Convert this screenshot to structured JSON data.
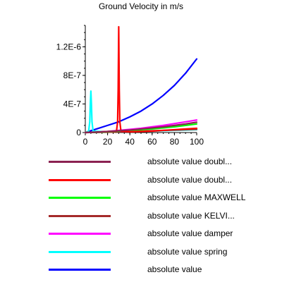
{
  "chart_data": {
    "type": "line",
    "title": "Ground Velocity in m/s",
    "xlabel": "",
    "ylabel": "",
    "xlim": [
      0,
      100
    ],
    "ylim": [
      0,
      1.5e-06
    ],
    "xticks": [
      0,
      20,
      40,
      60,
      80,
      100
    ],
    "yticks": [
      0,
      4e-07,
      8e-07,
      1.2e-06
    ],
    "xtick_labels": [
      "0",
      "20",
      "40",
      "60",
      "80",
      "100"
    ],
    "ytick_labels": [
      "0",
      "4E-7",
      "8E-7",
      "1.2E-6"
    ],
    "legend_placement": "bottom",
    "grid": false,
    "series": [
      {
        "name": "absolute value doubl...",
        "color": "#8b2252",
        "x": [
          0,
          10,
          20,
          30,
          40,
          50,
          60,
          70,
          80,
          90,
          100
        ],
        "y": [
          0,
          5e-09,
          1.5e-08,
          2.5e-08,
          3.5e-08,
          5e-08,
          6.5e-08,
          8e-08,
          1e-07,
          1.2e-07,
          1.45e-07
        ]
      },
      {
        "name": "absolute value doubl...",
        "color": "#ff0000",
        "x": [
          0,
          28,
          29,
          29.5,
          30,
          30.5,
          31,
          32,
          40,
          60,
          80,
          100
        ],
        "y": [
          0,
          2e-08,
          1.5e-07,
          6e-07,
          1.48e-06,
          6e-07,
          1.5e-07,
          2e-08,
          1e-08,
          2e-08,
          4e-08,
          6e-08
        ]
      },
      {
        "name": "absolute value MAXWELL",
        "color": "#00ff00",
        "x": [
          0,
          10,
          20,
          30,
          40,
          50,
          60,
          70,
          80,
          90,
          100
        ],
        "y": [
          0,
          4e-09,
          1e-08,
          2e-08,
          3e-08,
          4e-08,
          5e-08,
          6.5e-08,
          8e-08,
          1e-07,
          1.2e-07
        ]
      },
      {
        "name": "absolute value KELVI...",
        "color": "#a52a2a",
        "x": [
          0,
          10,
          20,
          30,
          40,
          50,
          60,
          70,
          80,
          90,
          100
        ],
        "y": [
          0,
          2e-09,
          5e-09,
          1e-08,
          1.5e-08,
          2e-08,
          2.5e-08,
          3e-08,
          3.5e-08,
          4e-08,
          4.5e-08
        ]
      },
      {
        "name": "absolute value damper",
        "color": "#ff00ff",
        "x": [
          0,
          10,
          20,
          30,
          40,
          50,
          60,
          70,
          80,
          90,
          100
        ],
        "y": [
          0,
          5e-09,
          1.5e-08,
          3e-08,
          4.5e-08,
          6e-08,
          8e-08,
          1e-07,
          1.25e-07,
          1.5e-07,
          1.75e-07
        ]
      },
      {
        "name": "absolute value spring",
        "color": "#00ffff",
        "x": [
          0,
          3,
          4,
          4.5,
          5,
          5.5,
          6,
          7,
          20,
          40,
          60,
          80,
          100
        ],
        "y": [
          0,
          2e-08,
          1.5e-07,
          4e-07,
          5.8e-07,
          4e-07,
          1.5e-07,
          2e-08,
          1e-08,
          1.5e-08,
          2e-08,
          3e-08,
          4e-08
        ]
      },
      {
        "name": "absolute value",
        "color": "#0000ff",
        "x": [
          0,
          10,
          20,
          30,
          40,
          50,
          60,
          70,
          80,
          90,
          100
        ],
        "y": [
          0,
          5e-08,
          1e-07,
          1.5e-07,
          2.2e-07,
          3e-07,
          4e-07,
          5.2e-07,
          6.6e-07,
          8.3e-07,
          1.03e-06
        ]
      }
    ]
  }
}
